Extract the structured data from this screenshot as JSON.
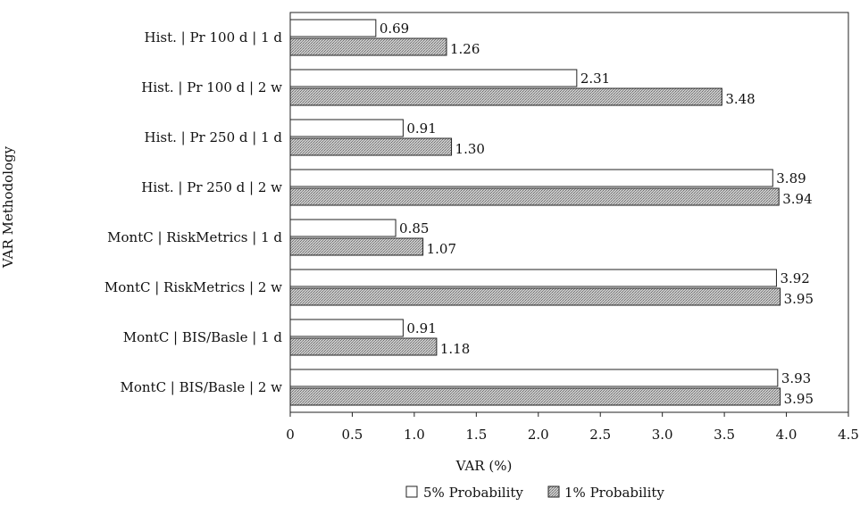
{
  "chart_data": {
    "type": "bar",
    "orientation": "horizontal",
    "categories": [
      "Hist. | Pr 100 d | 1 d",
      "Hist. | Pr 100 d | 2 w",
      "Hist. | Pr 250 d | 1 d",
      "Hist. | Pr 250 d | 2 w",
      "MontC | RiskMetrics | 1 d",
      "MontC | RiskMetrics | 2 w",
      "MontC | BIS/Basle | 1 d",
      "MontC | BIS/Basle | 2 w"
    ],
    "series": [
      {
        "name": "5% Probability",
        "fill": "#ffffff",
        "values": [
          0.69,
          2.31,
          0.91,
          3.89,
          0.85,
          3.92,
          0.91,
          3.93
        ],
        "labels": [
          "0.69",
          "2.31",
          "0.91",
          "3.89",
          "0.85",
          "3.92",
          "0.91",
          "3.93"
        ]
      },
      {
        "name": "1% Probability",
        "fill": "#9a9a9a",
        "values": [
          1.26,
          3.48,
          1.3,
          3.94,
          1.07,
          3.95,
          1.18,
          3.95
        ],
        "labels": [
          "1.26",
          "3.48",
          "1.30",
          "3.94",
          "1.07",
          "3.95",
          "1.18",
          "3.95"
        ]
      }
    ],
    "xlabel": "VAR (%)",
    "ylabel": "VAR Methodology",
    "xlim": [
      0,
      4.5
    ],
    "xticks": [
      0,
      0.5,
      1.0,
      1.5,
      2.0,
      2.5,
      3.0,
      3.5,
      4.0,
      4.5
    ],
    "xtick_labels": [
      "0",
      "0.5",
      "1.0",
      "1.5",
      "2.0",
      "2.5",
      "3.0",
      "3.5",
      "4.0",
      "4.5"
    ],
    "grid": false,
    "legend_position": "bottom"
  }
}
